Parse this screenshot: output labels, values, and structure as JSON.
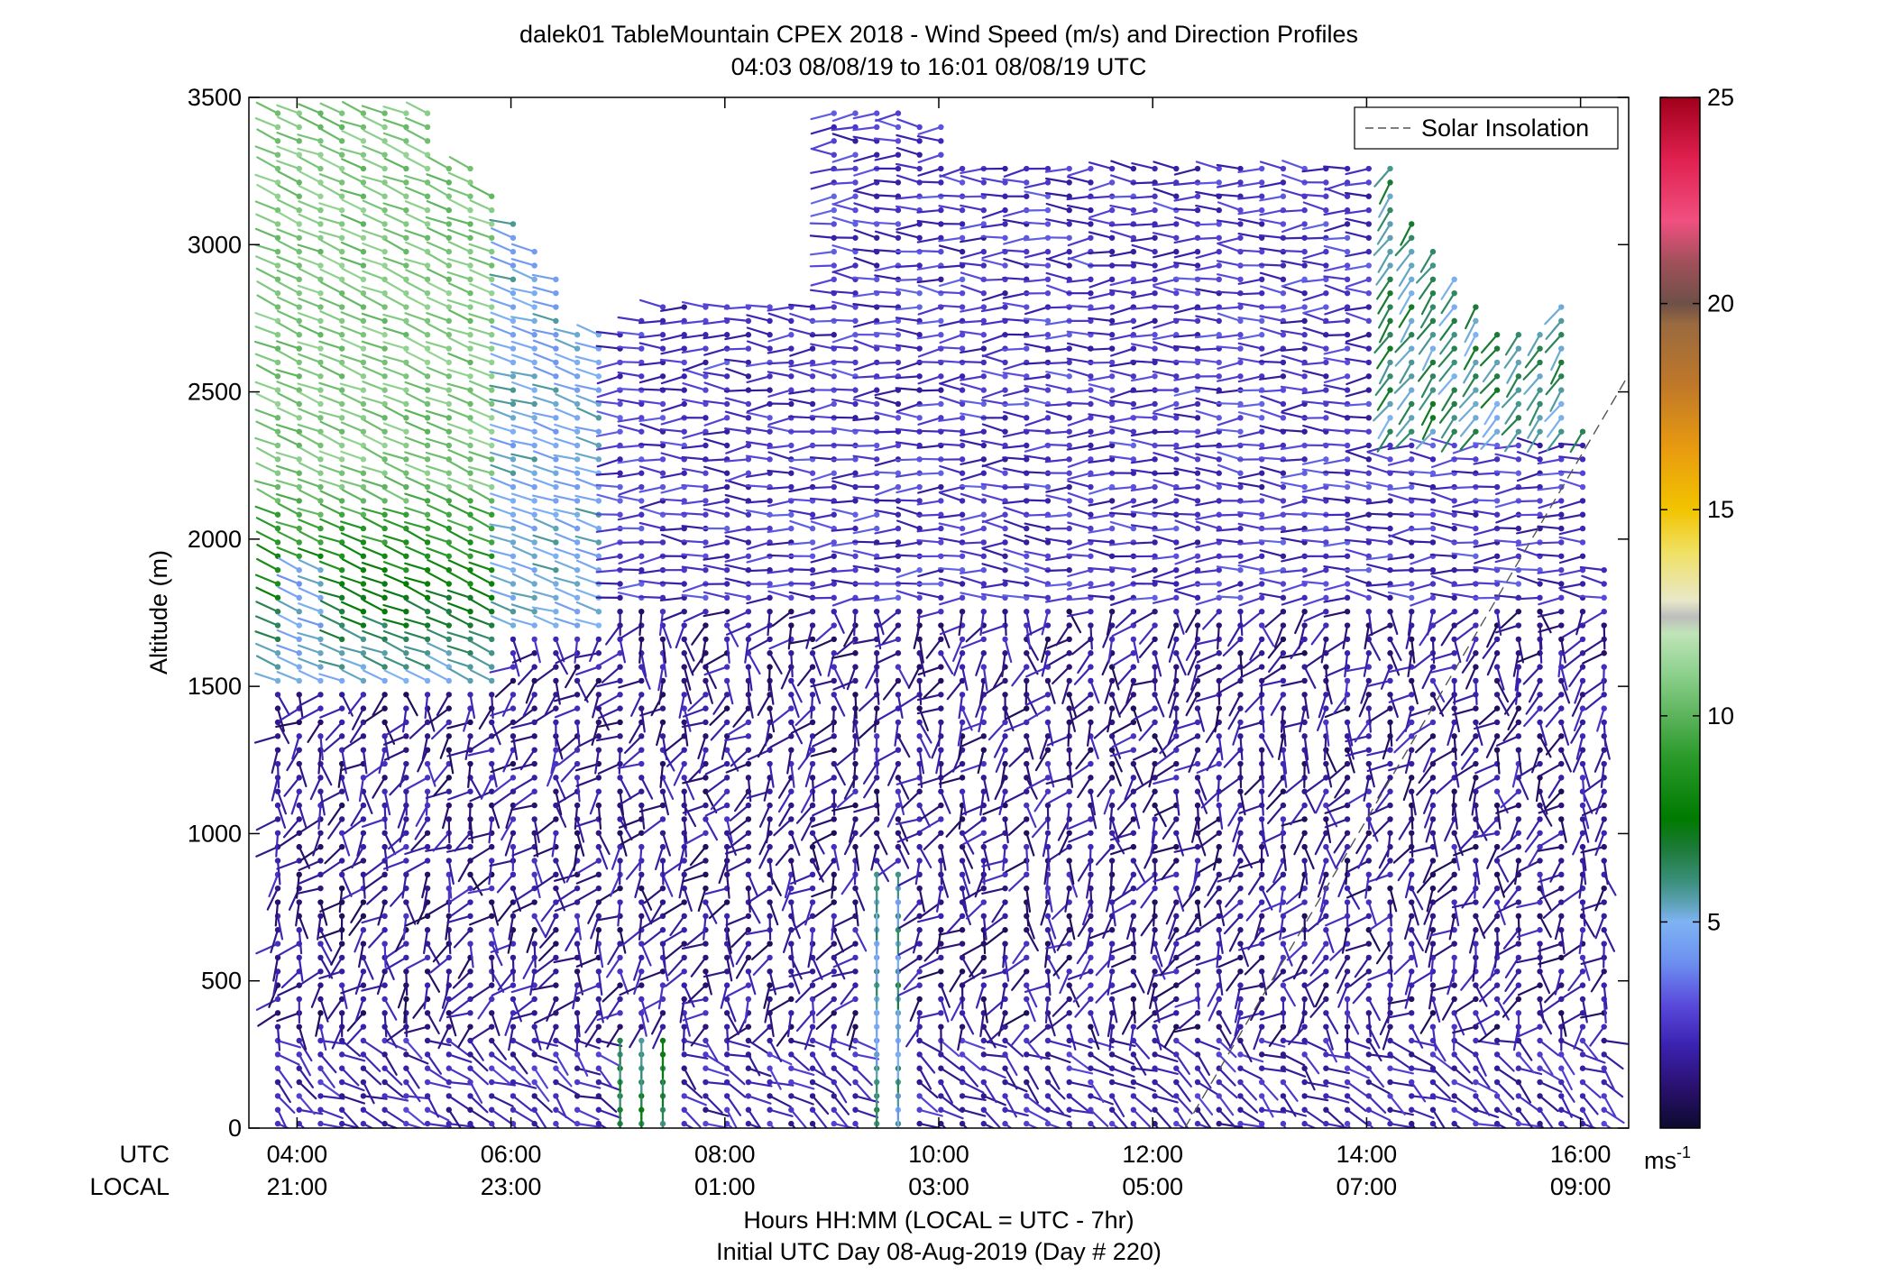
{
  "chart_data": {
    "type": "wind_barb_profile",
    "title": "dalek01 TableMountain CPEX 2018 - Wind Speed (m/s) and Direction Profiles",
    "subtitle": "04:03 08/08/19 to 16:01 08/08/19  UTC",
    "ylabel": "Altitude (m)",
    "xlabel": "Hours HH:MM  (LOCAL = UTC - 7hr)",
    "xlabel2": "Initial UTC Day 08-Aug-2019 (Day # 220)",
    "row_labels": {
      "utc": "UTC",
      "local": "LOCAL"
    },
    "ylim": [
      0,
      3500
    ],
    "yticks": [
      0,
      500,
      1000,
      1500,
      2000,
      2500,
      3000,
      3500
    ],
    "xlim_hours": [
      3.55,
      16.45
    ],
    "xticks": [
      {
        "utc": "04:00",
        "local": "21:00",
        "hour": 4
      },
      {
        "utc": "06:00",
        "local": "23:00",
        "hour": 6
      },
      {
        "utc": "08:00",
        "local": "01:00",
        "hour": 8
      },
      {
        "utc": "10:00",
        "local": "03:00",
        "hour": 10
      },
      {
        "utc": "12:00",
        "local": "05:00",
        "hour": 12
      },
      {
        "utc": "14:00",
        "local": "07:00",
        "hour": 14
      },
      {
        "utc": "16:00",
        "local": "09:00",
        "hour": 16
      }
    ],
    "legend": {
      "label": "Solar Insolation",
      "placement": "top-right",
      "style": "dashed gray line"
    },
    "solar_insolation_line": [
      {
        "hour": 12.3,
        "altitude": 0
      },
      {
        "hour": 16.55,
        "altitude": 2620
      }
    ],
    "colorbar": {
      "range": [
        0,
        25
      ],
      "ticks": [
        5,
        10,
        15,
        20,
        25
      ],
      "unit_label": "ms",
      "unit_exponent": "-1",
      "colormap": [
        {
          "v": 0.0,
          "c": "#0d0a2e"
        },
        {
          "v": 1.0,
          "c": "#2a1170"
        },
        {
          "v": 2.0,
          "c": "#3a22b0"
        },
        {
          "v": 3.0,
          "c": "#5a4adc"
        },
        {
          "v": 4.0,
          "c": "#6c8ff0"
        },
        {
          "v": 5.0,
          "c": "#7fb3f3"
        },
        {
          "v": 5.5,
          "c": "#5aa0b0"
        },
        {
          "v": 6.0,
          "c": "#3a8f7a"
        },
        {
          "v": 6.8,
          "c": "#1c7a36"
        },
        {
          "v": 7.5,
          "c": "#007a00"
        },
        {
          "v": 9.0,
          "c": "#2a9a2a"
        },
        {
          "v": 10.0,
          "c": "#5cb35c"
        },
        {
          "v": 11.0,
          "c": "#8cd08c"
        },
        {
          "v": 12.0,
          "c": "#c0e4b8"
        },
        {
          "v": 12.4,
          "c": "#bdbdbd"
        },
        {
          "v": 12.8,
          "c": "#e8e8c8"
        },
        {
          "v": 14.0,
          "c": "#f0e060"
        },
        {
          "v": 15.0,
          "c": "#f2c400"
        },
        {
          "v": 16.5,
          "c": "#e89a10"
        },
        {
          "v": 18.0,
          "c": "#c07828"
        },
        {
          "v": 19.5,
          "c": "#9a6a40"
        },
        {
          "v": 20.0,
          "c": "#6e5048"
        },
        {
          "v": 21.0,
          "c": "#a0505a"
        },
        {
          "v": 22.0,
          "c": "#f05080"
        },
        {
          "v": 23.5,
          "c": "#e02050"
        },
        {
          "v": 25.0,
          "c": "#a0001a"
        }
      ]
    },
    "profile_times_hours": [
      3.82,
      4.02,
      4.22,
      4.42,
      4.62,
      4.82,
      5.02,
      5.22,
      5.42,
      5.62,
      5.82,
      6.02,
      6.22,
      6.42,
      6.62,
      6.82,
      7.02,
      7.22,
      7.42,
      7.62,
      7.82,
      8.02,
      8.22,
      8.42,
      8.62,
      8.82,
      9.02,
      9.22,
      9.42,
      9.62,
      9.82,
      10.02,
      10.22,
      10.42,
      10.62,
      10.82,
      11.02,
      11.22,
      11.42,
      11.62,
      11.82,
      12.02,
      12.22,
      12.42,
      12.62,
      12.82,
      13.02,
      13.22,
      13.42,
      13.62,
      13.82,
      14.02,
      14.22,
      14.42,
      14.62,
      14.82,
      15.02,
      15.22,
      15.42,
      15.62,
      15.82,
      16.02,
      16.22
    ],
    "profile_tops_m": [
      3470,
      3470,
      3470,
      3460,
      3460,
      3460,
      3450,
      3460,
      3300,
      3300,
      3200,
      3100,
      3000,
      2900,
      2700,
      2700,
      2700,
      2750,
      2800,
      2800,
      2800,
      2800,
      2800,
      2800,
      2800,
      2820,
      3450,
      3460,
      3460,
      3460,
      3440,
      3430,
      3300,
      3300,
      3300,
      3300,
      3300,
      3300,
      3300,
      3300,
      3300,
      3300,
      3300,
      3300,
      3300,
      3300,
      3300,
      3300,
      3300,
      3300,
      3300,
      3280,
      3280,
      3100,
      3000,
      2900,
      2800,
      2700,
      2700,
      2700,
      2800,
      2400,
      1900
    ],
    "speed_regimes_ms": [
      {
        "hours": [
          3.8,
          5.8
        ],
        "altitude_m": [
          1500,
          3470
        ],
        "speed": "7-11 (green)",
        "direction_deg": 290
      },
      {
        "hours": [
          5.8,
          7.0
        ],
        "altitude_m": [
          1700,
          3300
        ],
        "speed": "4-6 (light blue)",
        "direction_deg": 290
      },
      {
        "hours": [
          7.0,
          16.3
        ],
        "altitude_m": [
          1800,
          3300
        ],
        "speed": "1-3 (purple)",
        "direction_deg": 260
      },
      {
        "hours": [
          3.8,
          16.3
        ],
        "altitude_m": [
          300,
          1800
        ],
        "speed": "0.5-2.5 (dark purple)",
        "direction_deg": 200
      },
      {
        "hours": [
          3.8,
          16.3
        ],
        "altitude_m": [
          0,
          300
        ],
        "speed": "1-3 (purple)",
        "direction_deg": 110
      },
      {
        "hours": [
          7.0,
          7.5
        ],
        "altitude_m": [
          0,
          300
        ],
        "speed": "6-7 (green)",
        "direction_deg": 180
      },
      {
        "hours": [
          9.4,
          9.6
        ],
        "altitude_m": [
          0,
          900
        ],
        "speed": "4-7 (blue-green)",
        "direction_deg": 180
      },
      {
        "hours": [
          14.3,
          16.0
        ],
        "altitude_m": [
          2400,
          3100
        ],
        "speed": "5-7 (teal)",
        "direction_deg": 210
      }
    ]
  }
}
